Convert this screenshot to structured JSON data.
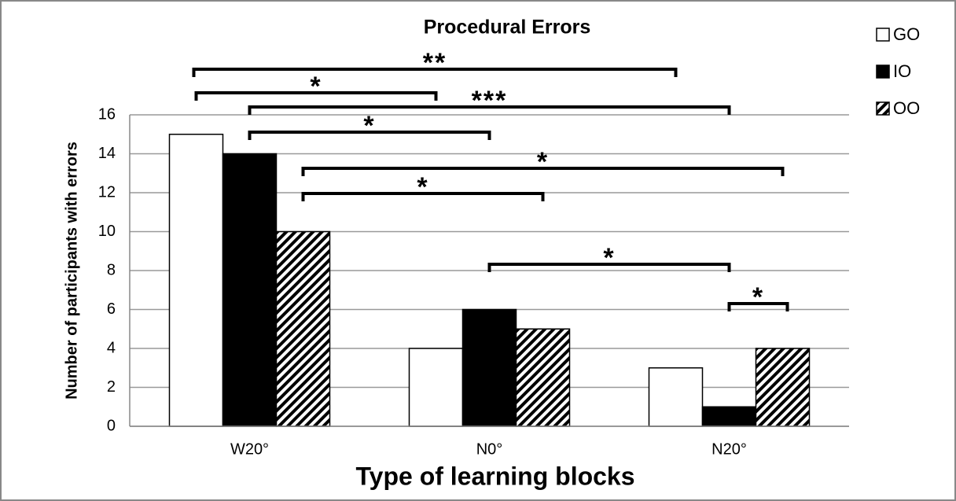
{
  "chart_data": {
    "type": "bar",
    "title": "Procedural Errors",
    "y_label": "Number of participants with errors",
    "x_label": "Type of learning blocks",
    "categories": [
      "W20°",
      "N0°",
      "N20°"
    ],
    "series": [
      {
        "name": "GO",
        "color": "#ffffff",
        "values": [
          15,
          4,
          3
        ]
      },
      {
        "name": "IO",
        "color": "#000000",
        "values": [
          14,
          6,
          1
        ]
      },
      {
        "name": "OO",
        "color": "#000000",
        "hatch": true,
        "values": [
          10,
          5,
          4
        ]
      }
    ],
    "ylim": [
      0,
      16
    ],
    "yticks": [
      0,
      2,
      4,
      6,
      8,
      10,
      12,
      14,
      16
    ],
    "grid": true,
    "legend": "top-right",
    "annotations": [
      {
        "label": "**",
        "series": [
          "GO",
          "GO"
        ],
        "categories": [
          "W20°",
          "N20°"
        ]
      },
      {
        "label": "*",
        "series": [
          "GO",
          "GO"
        ],
        "categories": [
          "W20°",
          "N0°"
        ]
      },
      {
        "label": "***",
        "series": [
          "IO",
          "IO"
        ],
        "categories": [
          "W20°",
          "N20°"
        ]
      },
      {
        "label": "*",
        "series": [
          "IO",
          "IO"
        ],
        "categories": [
          "W20°",
          "N0°"
        ]
      },
      {
        "label": "*",
        "series": [
          "OO",
          "OO"
        ],
        "categories": [
          "W20°",
          "N20°"
        ]
      },
      {
        "label": "*",
        "series": [
          "OO",
          "OO"
        ],
        "categories": [
          "W20°",
          "N0°"
        ]
      },
      {
        "label": "*",
        "series": [
          "IO",
          "IO"
        ],
        "categories": [
          "N0°",
          "N20°"
        ]
      },
      {
        "label": "*",
        "series": [
          "IO",
          "OO"
        ],
        "categories": [
          "N20°",
          "N20°"
        ]
      }
    ]
  }
}
